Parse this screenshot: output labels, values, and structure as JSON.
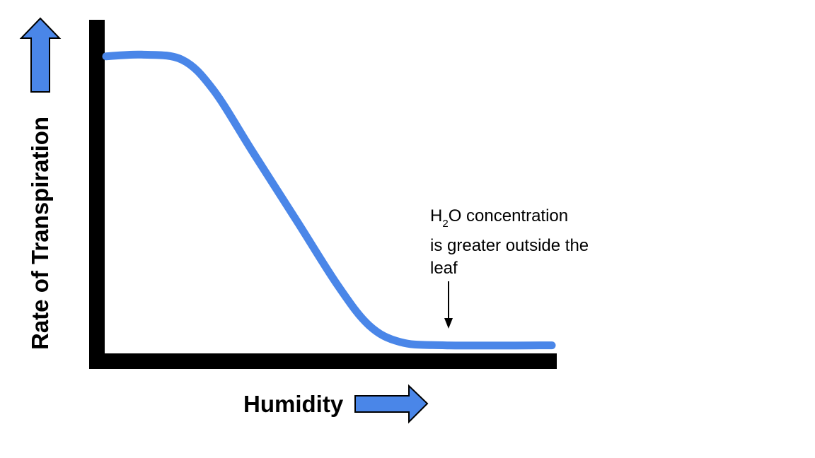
{
  "chart_data": {
    "type": "line",
    "title": "",
    "xlabel": "Humidity",
    "ylabel": "Rate of Transpiration",
    "axes_ticks": false,
    "grid": false,
    "legend": "none",
    "xlim": [
      0,
      100
    ],
    "ylim": [
      0,
      100
    ],
    "series": [
      {
        "color": "#4a86e8",
        "points": [
          [
            0,
            89
          ],
          [
            8,
            89.5
          ],
          [
            17,
            88
          ],
          [
            24,
            79
          ],
          [
            33,
            60
          ],
          [
            43,
            39
          ],
          [
            52,
            20
          ],
          [
            59,
            8
          ],
          [
            66,
            3
          ],
          [
            76,
            2
          ],
          [
            100,
            2
          ]
        ]
      }
    ],
    "annotation": {
      "line1_main": "H",
      "line1_sub": "2",
      "line1_rest": "O concentration",
      "line2": "is greater outside the",
      "line3": "leaf",
      "points_to": [
        74,
        5
      ]
    }
  },
  "colors": {
    "axis": "#000000",
    "curve": "#4a86e8",
    "arrow_fill": "#4a86e8",
    "arrow_stroke": "#000000"
  },
  "icons": {
    "y_axis_arrow": "arrow-up-icon",
    "x_axis_arrow": "arrow-right-icon"
  }
}
